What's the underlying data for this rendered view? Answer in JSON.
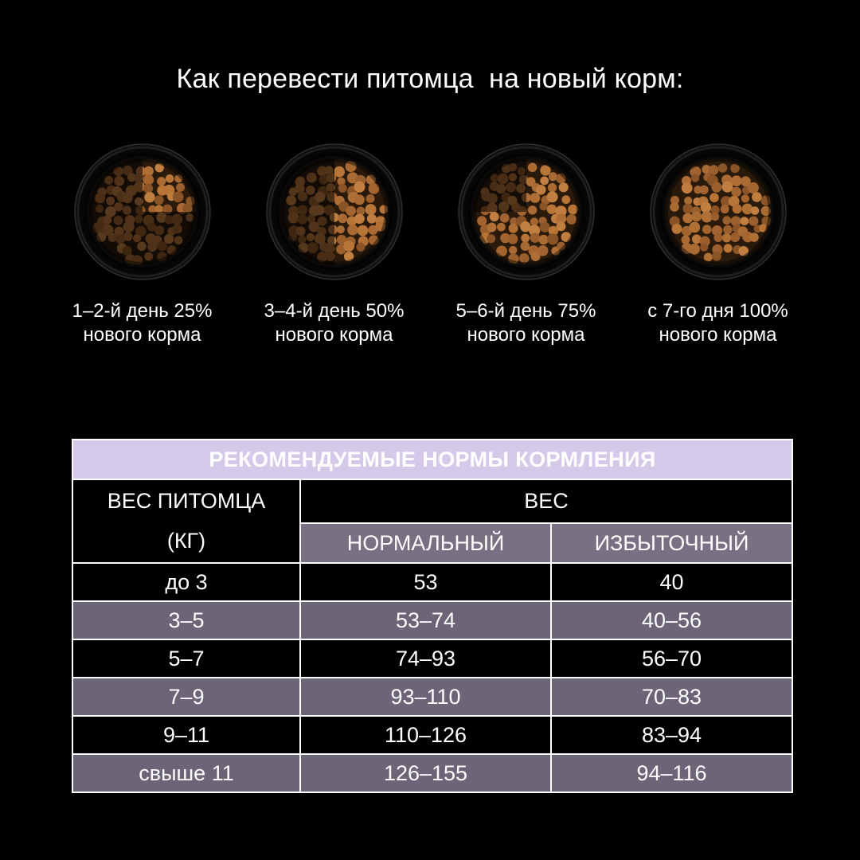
{
  "title": "Как перевести питомца  на новый корм:",
  "transition_steps": [
    {
      "line1": "1–2-й день 25%",
      "line2": "нового корма",
      "new_food_percent": 25
    },
    {
      "line1": "3–4-й день 50%",
      "line2": "нового корма",
      "new_food_percent": 50
    },
    {
      "line1": "5–6-й день 75%",
      "line2": "нового корма",
      "new_food_percent": 75
    },
    {
      "line1": "с 7-го дня 100%",
      "line2": "нового корма",
      "new_food_percent": 100
    }
  ],
  "feeding_table": {
    "title": "РЕКОМЕНДУЕМЫЕ НОРМЫ КОРМЛЕНИЯ",
    "col1_header_line1": "ВЕС ПИТОМЦА",
    "col1_header_line2": "(КГ)",
    "group_header": "ВЕС",
    "sub_headers": [
      "НОРМАЛЬНЫЙ",
      "ИЗБЫТОЧНЫЙ"
    ],
    "rows": [
      {
        "weight": "до 3",
        "normal": "53",
        "excess": "40"
      },
      {
        "weight": "3–5",
        "normal": "53–74",
        "excess": "40–56"
      },
      {
        "weight": "5–7",
        "normal": "74–93",
        "excess": "56–70"
      },
      {
        "weight": "7–9",
        "normal": "93–110",
        "excess": "70–83"
      },
      {
        "weight": "9–11",
        "normal": "110–126",
        "excess": "83–94"
      },
      {
        "weight": "свыше 11",
        "normal": "126–155",
        "excess": "94–116"
      }
    ]
  },
  "colors": {
    "background": "#000000",
    "table_title_bg": "#d4c9e8",
    "table_title_text": "#191222",
    "row_dark_bg": "#000000",
    "row_purple_bg": "#6c6477",
    "subheader_bg": "#797183",
    "table_border": "#ffffff",
    "text": "#ffffff",
    "kibble_light": "#b77538",
    "kibble_dark": "#8a5426"
  }
}
